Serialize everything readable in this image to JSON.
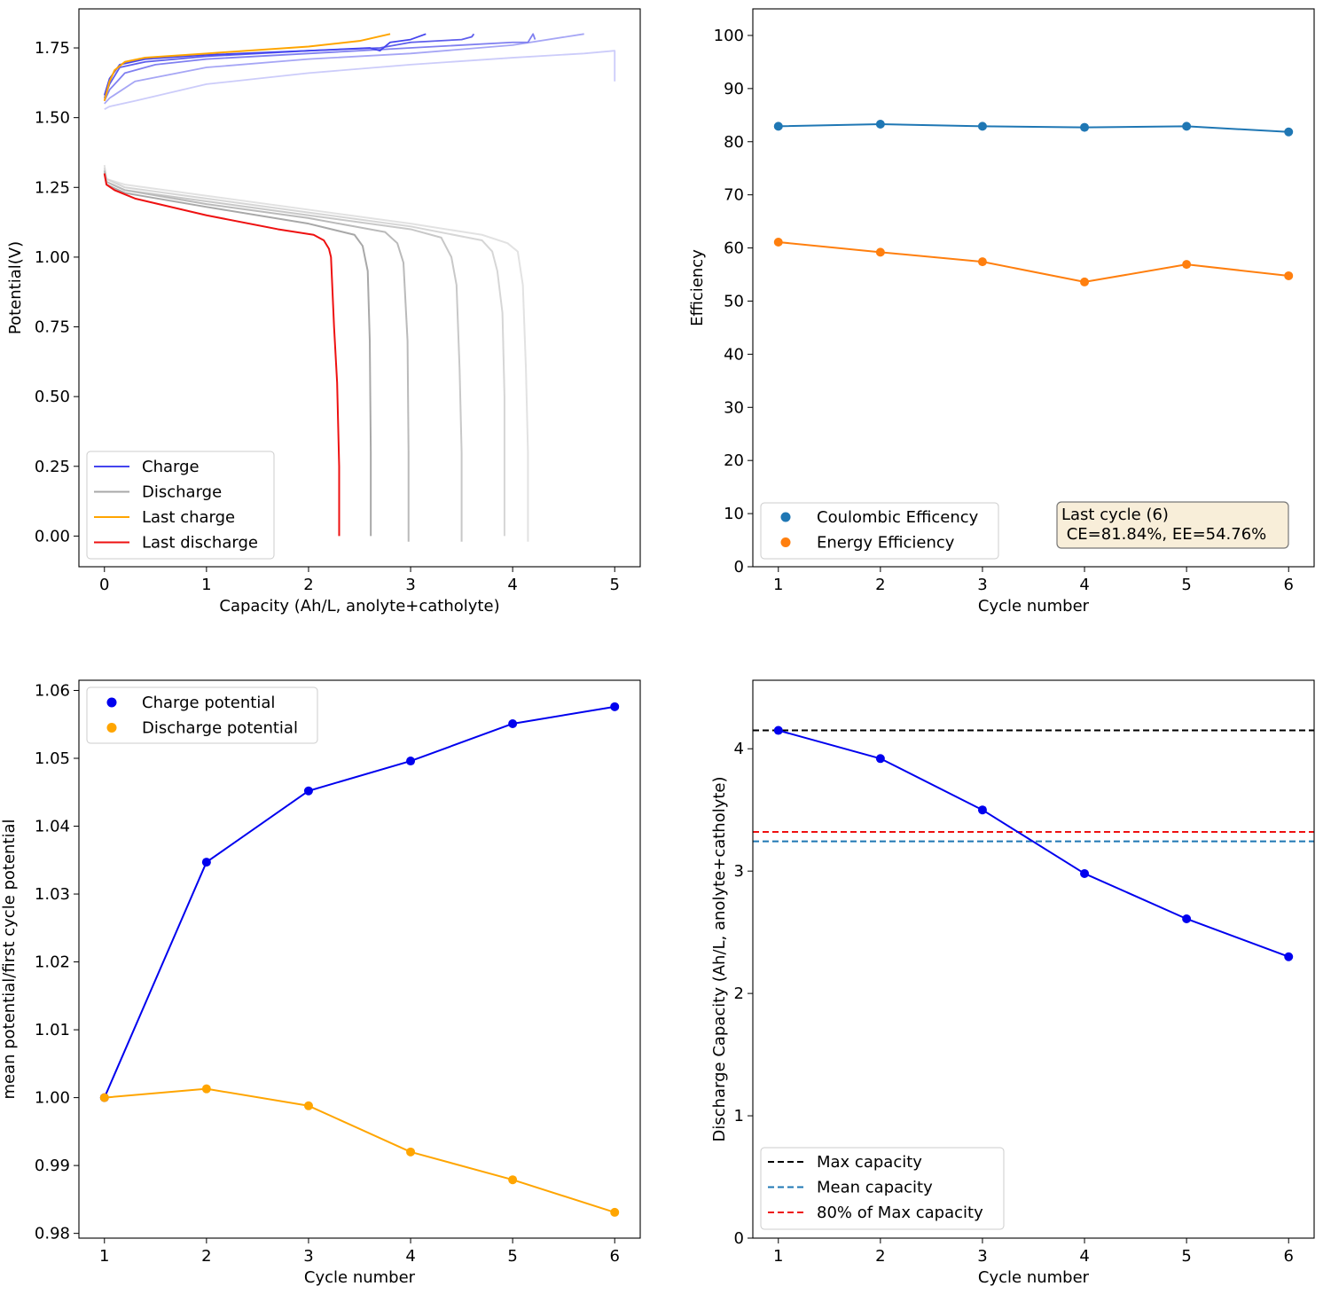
{
  "chart_data": [
    {
      "type": "line",
      "id": "voltage_profiles",
      "xlabel": "Capacity (Ah/L, anolyte+catholyte)",
      "ylabel": "Potential(V)",
      "xlim": [
        -0.25,
        5.25
      ],
      "ylim": [
        -0.11,
        1.89
      ],
      "xticks": [
        0,
        1,
        2,
        3,
        4,
        5
      ],
      "xtick_labels": [
        "0",
        "1",
        "2",
        "3",
        "4",
        "5"
      ],
      "yticks": [
        0.0,
        0.25,
        0.5,
        0.75,
        1.0,
        1.25,
        1.5,
        1.75
      ],
      "ytick_labels": [
        "0.00",
        "0.25",
        "0.50",
        "0.75",
        "1.00",
        "1.25",
        "1.50",
        "1.75"
      ],
      "legend": [
        {
          "label": "Charge",
          "color": "#4444ee"
        },
        {
          "label": "Discharge",
          "color": "#a8a8a8"
        },
        {
          "label": "Last charge",
          "color": "#ffa500"
        },
        {
          "label": "Last discharge",
          "color": "#ee1111"
        }
      ],
      "charge_series": [
        {
          "cycle": 1,
          "color": "#ccccfa",
          "x": [
            0,
            0.05,
            0.3,
            1.0,
            2.0,
            3.0,
            4.0,
            4.7,
            5.0,
            5.0
          ],
          "y": [
            1.53,
            1.54,
            1.56,
            1.62,
            1.66,
            1.69,
            1.715,
            1.73,
            1.74,
            1.63
          ]
        },
        {
          "cycle": 2,
          "color": "#a6a6f5",
          "x": [
            0,
            0.05,
            0.3,
            1.0,
            2.0,
            3.0,
            4.0,
            4.7
          ],
          "y": [
            1.55,
            1.57,
            1.63,
            1.68,
            1.71,
            1.73,
            1.76,
            1.8
          ]
        },
        {
          "cycle": 3,
          "color": "#8080f0",
          "x": [
            0,
            0.05,
            0.2,
            0.5,
            1.0,
            2.0,
            3.0,
            4.0,
            4.15,
            4.2,
            4.22
          ],
          "y": [
            1.56,
            1.6,
            1.66,
            1.69,
            1.71,
            1.73,
            1.75,
            1.77,
            1.77,
            1.8,
            1.78
          ]
        },
        {
          "cycle": 4,
          "color": "#5e5eec",
          "x": [
            0,
            0.05,
            0.15,
            0.4,
            1.0,
            2.0,
            2.7,
            2.85,
            3.0,
            3.5,
            3.6,
            3.62
          ],
          "y": [
            1.57,
            1.62,
            1.68,
            1.7,
            1.72,
            1.74,
            1.75,
            1.76,
            1.77,
            1.78,
            1.79,
            1.8
          ]
        },
        {
          "cycle": 5,
          "color": "#4444ee",
          "x": [
            0,
            0.05,
            0.15,
            0.4,
            1.0,
            2.0,
            2.6,
            2.7,
            2.8,
            3.0,
            3.15
          ],
          "y": [
            1.58,
            1.64,
            1.69,
            1.71,
            1.725,
            1.74,
            1.75,
            1.74,
            1.77,
            1.78,
            1.8
          ]
        }
      ],
      "last_charge": {
        "cycle": 6,
        "color": "#ffa500",
        "x": [
          0,
          0.05,
          0.1,
          0.2,
          0.4,
          1.0,
          2.0,
          2.5,
          2.8
        ],
        "y": [
          1.56,
          1.63,
          1.67,
          1.7,
          1.715,
          1.73,
          1.755,
          1.775,
          1.8
        ]
      },
      "discharge_series": [
        {
          "cycle": 1,
          "color": "#e2e2e2",
          "x": [
            0,
            0.02,
            0.2,
            1.0,
            2.0,
            3.0,
            3.7,
            3.95,
            4.05,
            4.1,
            4.13,
            4.15,
            4.15
          ],
          "y": [
            1.33,
            1.28,
            1.26,
            1.22,
            1.17,
            1.12,
            1.08,
            1.05,
            1.02,
            0.9,
            0.6,
            0.3,
            -0.02
          ]
        },
        {
          "cycle": 2,
          "color": "#d6d6d6",
          "x": [
            0,
            0.02,
            0.2,
            1.0,
            2.0,
            3.0,
            3.7,
            3.8,
            3.85,
            3.9,
            3.92,
            3.92
          ],
          "y": [
            1.32,
            1.28,
            1.25,
            1.21,
            1.16,
            1.11,
            1.06,
            1.02,
            0.95,
            0.8,
            0.5,
            0.0
          ]
        },
        {
          "cycle": 3,
          "color": "#c8c8c8",
          "x": [
            0,
            0.02,
            0.2,
            1.0,
            2.0,
            3.0,
            3.3,
            3.4,
            3.45,
            3.48,
            3.5,
            3.5
          ],
          "y": [
            1.31,
            1.27,
            1.24,
            1.2,
            1.15,
            1.1,
            1.07,
            1.0,
            0.9,
            0.6,
            0.3,
            -0.02
          ]
        },
        {
          "cycle": 4,
          "color": "#bababa",
          "x": [
            0,
            0.02,
            0.2,
            1.0,
            2.0,
            2.75,
            2.87,
            2.93,
            2.97,
            2.98,
            2.98
          ],
          "y": [
            1.31,
            1.27,
            1.24,
            1.19,
            1.14,
            1.09,
            1.05,
            0.98,
            0.7,
            0.3,
            -0.02
          ]
        },
        {
          "cycle": 5,
          "color": "#a8a8a8",
          "x": [
            0,
            0.02,
            0.2,
            1.0,
            2.0,
            2.45,
            2.53,
            2.58,
            2.6,
            2.61,
            2.61
          ],
          "y": [
            1.3,
            1.26,
            1.23,
            1.18,
            1.12,
            1.08,
            1.04,
            0.95,
            0.7,
            0.3,
            0.0
          ]
        }
      ],
      "last_discharge": {
        "cycle": 6,
        "color": "#ee1111",
        "x": [
          0,
          0.02,
          0.1,
          0.3,
          1.0,
          1.7,
          2.05,
          2.15,
          2.2,
          2.22,
          2.25,
          2.28,
          2.3,
          2.3
        ],
        "y": [
          1.3,
          1.26,
          1.24,
          1.21,
          1.15,
          1.1,
          1.08,
          1.06,
          1.03,
          1.0,
          0.75,
          0.55,
          0.25,
          0.0
        ]
      }
    },
    {
      "type": "line",
      "id": "efficiency",
      "xlabel": "Cycle number",
      "ylabel": "Efficiency",
      "xlim": [
        0.75,
        6.25
      ],
      "ylim": [
        0,
        105
      ],
      "xticks": [
        1,
        2,
        3,
        4,
        5,
        6
      ],
      "xtick_labels": [
        "1",
        "2",
        "3",
        "4",
        "5",
        "6"
      ],
      "yticks": [
        0,
        10,
        20,
        30,
        40,
        50,
        60,
        70,
        80,
        90,
        100
      ],
      "ytick_labels": [
        "0",
        "10",
        "20",
        "30",
        "40",
        "50",
        "60",
        "70",
        "80",
        "90",
        "100"
      ],
      "x": [
        1,
        2,
        3,
        4,
        5,
        6
      ],
      "series": [
        {
          "name": "Coulombic Efficency",
          "color": "#1f77b4",
          "values": [
            82.9,
            83.3,
            82.9,
            82.7,
            82.9,
            81.84
          ]
        },
        {
          "name": "Energy Efficiency",
          "color": "#ff7f0e",
          "values": [
            61.1,
            59.2,
            57.4,
            53.6,
            56.9,
            54.76
          ]
        }
      ],
      "annotation": {
        "line1": "Last cycle (6)",
        "line2": " CE=81.84%, EE=54.76%",
        "facecolor": "#f8eed9",
        "edgecolor": "#777777"
      }
    },
    {
      "type": "line",
      "id": "mean_potential",
      "xlabel": "Cycle number",
      "ylabel": "mean potential/first cycle potential",
      "xlim": [
        0.75,
        6.25
      ],
      "ylim": [
        0.9793,
        1.0615
      ],
      "xticks": [
        1,
        2,
        3,
        4,
        5,
        6
      ],
      "xtick_labels": [
        "1",
        "2",
        "3",
        "4",
        "5",
        "6"
      ],
      "yticks": [
        0.98,
        0.99,
        1.0,
        1.01,
        1.02,
        1.03,
        1.04,
        1.05,
        1.06
      ],
      "ytick_labels": [
        "0.98",
        "0.99",
        "1.00",
        "1.01",
        "1.02",
        "1.03",
        "1.04",
        "1.05",
        "1.06"
      ],
      "x": [
        1,
        2,
        3,
        4,
        5,
        6
      ],
      "series": [
        {
          "name": "Charge potential",
          "color": "#0000ee",
          "values": [
            1.0,
            1.0347,
            1.0452,
            1.0496,
            1.0551,
            1.0576
          ]
        },
        {
          "name": "Discharge potential",
          "color": "#ffa500",
          "values": [
            1.0,
            1.0013,
            0.9988,
            0.992,
            0.9879,
            0.9831
          ]
        }
      ]
    },
    {
      "type": "line",
      "id": "discharge_capacity",
      "xlabel": "Cycle number",
      "ylabel": "Discharge Capacity (Ah/L, anolyte+catholyte)",
      "xlim": [
        0.75,
        6.25
      ],
      "ylim": [
        0,
        4.56
      ],
      "xticks": [
        1,
        2,
        3,
        4,
        5,
        6
      ],
      "xtick_labels": [
        "1",
        "2",
        "3",
        "4",
        "5",
        "6"
      ],
      "yticks": [
        0,
        1,
        2,
        3,
        4
      ],
      "ytick_labels": [
        "0",
        "1",
        "2",
        "3",
        "4"
      ],
      "x": [
        1,
        2,
        3,
        4,
        5,
        6
      ],
      "series": [
        {
          "name": "Discharge capacity",
          "color": "#0000ee",
          "values": [
            4.15,
            3.92,
            3.5,
            2.98,
            2.61,
            2.3
          ]
        }
      ],
      "hlines": [
        {
          "name": "Max capacity",
          "color": "#000000",
          "value": 4.15
        },
        {
          "name": "Mean capacity",
          "color": "#1f77b4",
          "value": 3.243
        },
        {
          "name": "80% of Max capacity",
          "color": "#ee1111",
          "value": 3.32
        }
      ]
    }
  ]
}
